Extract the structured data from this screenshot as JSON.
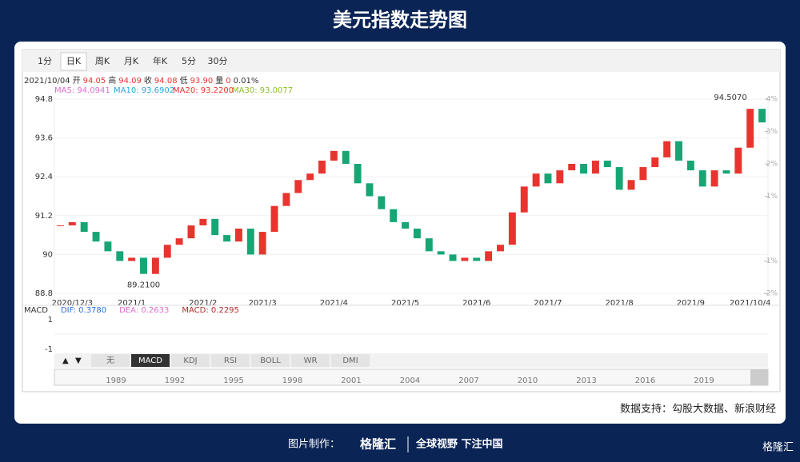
{
  "title": "美元指数走势图",
  "tabs": [
    "1分",
    "日K",
    "周K",
    "月K",
    "年K",
    "5分",
    "30分"
  ],
  "quote": [
    "2021/10/04",
    "开",
    "94.05",
    "高",
    "94.09",
    "收",
    "94.08",
    "低",
    "93.90",
    "量",
    "0",
    "0.01%"
  ],
  "ma": [
    "MA5: 94.0941",
    "MA10: 93.6902",
    "MA20: 93.2200",
    "MA30: 93.0077"
  ],
  "chart_data": {
    "type": "candlestick",
    "categories": [
      null,
      "2020/12/3",
      null,
      null,
      null,
      null,
      "2021/1",
      null,
      null,
      null,
      null,
      null,
      "2021/2",
      null,
      null,
      null,
      null,
      "2021/3",
      null,
      null,
      null,
      null,
      null,
      "2021/4",
      null,
      null,
      null,
      null,
      null,
      "2021/5",
      null,
      null,
      null,
      null,
      null,
      "2021/6",
      null,
      null,
      null,
      null,
      null,
      "2021/7",
      null,
      null,
      null,
      null,
      null,
      "2021/8",
      null,
      null,
      null,
      null,
      null,
      "2021/9",
      null,
      null,
      null,
      null,
      "2021/10/4",
      null
    ],
    "values": [
      90.9,
      91.0,
      90.7,
      90.4,
      90.1,
      89.8,
      89.9,
      89.4,
      89.9,
      90.3,
      90.5,
      90.9,
      91.1,
      90.6,
      90.4,
      90.8,
      90.0,
      90.7,
      91.5,
      91.9,
      92.3,
      92.5,
      92.9,
      93.2,
      92.8,
      92.2,
      91.8,
      91.4,
      91.0,
      90.8,
      90.5,
      90.1,
      90.0,
      89.8,
      89.9,
      89.8,
      90.1,
      90.3,
      91.3,
      92.1,
      92.5,
      92.2,
      92.6,
      92.8,
      92.5,
      92.9,
      92.7,
      92.0,
      92.3,
      92.7,
      93.0,
      93.5,
      92.9,
      92.6,
      92.1,
      92.6,
      92.5,
      93.3,
      94.5,
      94.08
    ],
    "ylim": [
      88.8,
      94.8
    ],
    "yticks": [
      88.8,
      90,
      91.2,
      92.4,
      93.6,
      94.8
    ],
    "y2lim": [
      -2,
      4
    ],
    "y2ticks": [
      {
        "value": 4,
        "label": "4%"
      },
      {
        "value": 3,
        "label": "3%"
      },
      {
        "value": 2,
        "label": "2%"
      },
      {
        "value": 1,
        "label": "1%"
      },
      {
        "value": -1,
        "label": "-1%"
      },
      {
        "value": -2,
        "label": "-2%"
      }
    ],
    "annotations": [
      "94.5070",
      "89.2100"
    ],
    "up_color": "#e8342f",
    "down_color": "#17a673"
  },
  "macd": [
    "MACD",
    "DIF: 0.3780",
    "DEA: 0.2633",
    "MACD: 0.2295"
  ],
  "macd_ticks": [
    "1",
    "-1"
  ],
  "indicator_tabs": [
    "无",
    "MACD",
    "KDJ",
    "RSI",
    "BOLL",
    "WR",
    "DMI"
  ],
  "timeline": [
    "1989",
    "1992",
    "1995",
    "1998",
    "2001",
    "2004",
    "2007",
    "2010",
    "2013",
    "2016",
    "2019"
  ],
  "source": "数据支持：勾股大数据、新浪财经",
  "footer": {
    "made": "图片制作：",
    "brand": "格隆汇",
    "slogan": "全球视野 下注中国",
    "logo": "格隆汇"
  }
}
